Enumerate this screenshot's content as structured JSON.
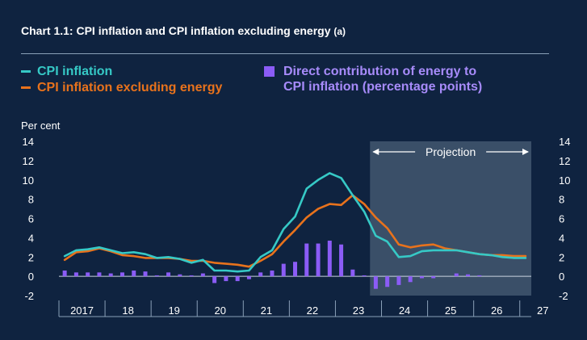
{
  "title": {
    "text": "Chart 1.1: CPI inflation and CPI inflation excluding energy",
    "note": "(a)"
  },
  "colors": {
    "background": "#0f2340",
    "cpi": "#36c9c6",
    "ex_energy": "#e8721c",
    "energy": "#8b5cf6",
    "projection": "#3a4f68",
    "grid": "#8aa0b8"
  },
  "legend": {
    "cpi": "CPI inflation",
    "ex_energy": "CPI inflation excluding energy",
    "energy_line1": "Direct contribution of energy to",
    "energy_line2": "CPI inflation (percentage points)"
  },
  "chart_data": {
    "type": "line",
    "title": "CPI inflation and CPI inflation excluding energy",
    "ylabel": "Per cent",
    "ylim": [
      -2,
      14
    ],
    "yticks": [
      "-2",
      "0",
      "2",
      "4",
      "6",
      "8",
      "10",
      "12",
      "14"
    ],
    "xlim": [
      2017.0,
      2027.25
    ],
    "x_tick_labels": [
      "2017",
      "18",
      "19",
      "20",
      "21",
      "22",
      "23",
      "24",
      "25",
      "26",
      "27"
    ],
    "projection": {
      "label": "Projection",
      "start": 2023.75,
      "end": 2027.25
    },
    "series": [
      {
        "name": "CPI inflation",
        "type": "line",
        "x": [
          2017.125,
          2017.375,
          2017.625,
          2017.875,
          2018.125,
          2018.375,
          2018.625,
          2018.875,
          2019.125,
          2019.375,
          2019.625,
          2019.875,
          2020.125,
          2020.375,
          2020.625,
          2020.875,
          2021.125,
          2021.375,
          2021.625,
          2021.875,
          2022.125,
          2022.375,
          2022.625,
          2022.875,
          2023.125,
          2023.375,
          2023.625,
          2023.875,
          2024.125,
          2024.375,
          2024.625,
          2024.875,
          2025.125,
          2025.375,
          2025.625,
          2025.875,
          2026.125,
          2026.375,
          2026.625,
          2026.875,
          2027.125
        ],
        "values": [
          2.1,
          2.7,
          2.8,
          3.0,
          2.7,
          2.4,
          2.5,
          2.3,
          1.9,
          2.0,
          1.8,
          1.4,
          1.7,
          0.6,
          0.6,
          0.5,
          0.6,
          2.0,
          2.7,
          4.9,
          6.2,
          9.1,
          10.0,
          10.7,
          10.2,
          8.4,
          6.7,
          4.2,
          3.6,
          2.0,
          2.1,
          2.6,
          2.7,
          2.7,
          2.7,
          2.5,
          2.3,
          2.2,
          2.0,
          1.9,
          1.9
        ]
      },
      {
        "name": "CPI inflation excluding energy",
        "type": "line",
        "x": [
          2017.125,
          2017.375,
          2017.625,
          2017.875,
          2018.125,
          2018.375,
          2018.625,
          2018.875,
          2019.125,
          2019.375,
          2019.625,
          2019.875,
          2020.125,
          2020.375,
          2020.625,
          2020.875,
          2021.125,
          2021.375,
          2021.625,
          2021.875,
          2022.125,
          2022.375,
          2022.625,
          2022.875,
          2023.125,
          2023.375,
          2023.625,
          2023.875,
          2024.125,
          2024.375,
          2024.625,
          2024.875,
          2025.125,
          2025.375,
          2025.625,
          2025.875,
          2026.125,
          2026.375,
          2026.625,
          2026.875,
          2027.125
        ],
        "values": [
          1.7,
          2.5,
          2.6,
          2.9,
          2.6,
          2.2,
          2.1,
          1.9,
          1.9,
          1.9,
          1.8,
          1.6,
          1.6,
          1.4,
          1.3,
          1.2,
          1.0,
          1.6,
          2.3,
          3.6,
          4.8,
          6.1,
          7.0,
          7.5,
          7.4,
          8.4,
          7.5,
          6.1,
          5.0,
          3.3,
          3.0,
          3.2,
          3.3,
          2.9,
          2.7,
          2.5,
          2.3,
          2.2,
          2.2,
          2.1,
          2.1
        ]
      },
      {
        "name": "Direct contribution of energy to CPI inflation (percentage points)",
        "type": "bar",
        "x": [
          2017.125,
          2017.375,
          2017.625,
          2017.875,
          2018.125,
          2018.375,
          2018.625,
          2018.875,
          2019.125,
          2019.375,
          2019.625,
          2019.875,
          2020.125,
          2020.375,
          2020.625,
          2020.875,
          2021.125,
          2021.375,
          2021.625,
          2021.875,
          2022.125,
          2022.375,
          2022.625,
          2022.875,
          2023.125,
          2023.375,
          2023.625,
          2023.875,
          2024.125,
          2024.375,
          2024.625,
          2024.875,
          2025.125,
          2025.375,
          2025.625,
          2025.875,
          2026.125,
          2026.375,
          2026.625,
          2026.875,
          2027.125
        ],
        "values": [
          0.6,
          0.4,
          0.4,
          0.4,
          0.3,
          0.4,
          0.6,
          0.5,
          0.1,
          0.4,
          0.2,
          0.1,
          0.3,
          -0.7,
          -0.5,
          -0.5,
          -0.3,
          0.4,
          0.6,
          1.3,
          1.5,
          3.4,
          3.4,
          3.7,
          3.3,
          0.7,
          0.1,
          -1.3,
          -1.1,
          -0.9,
          -0.6,
          -0.2,
          -0.2,
          0.0,
          0.3,
          0.2,
          0.1,
          0.0,
          0.0,
          0.0,
          0.0
        ]
      }
    ]
  }
}
